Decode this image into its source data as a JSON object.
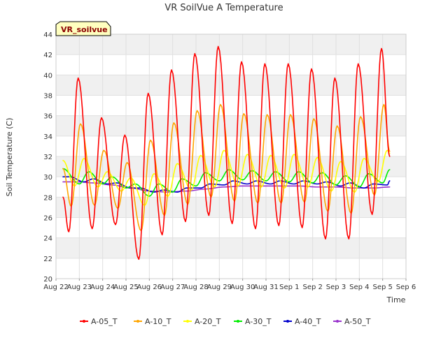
{
  "chart_data": {
    "type": "line",
    "title": "VR SoilVue A Temperature",
    "xlabel": "Time",
    "ylabel": "Soil Temperature (C)",
    "station_label": "VR_soilvue",
    "ylim": [
      20,
      44
    ],
    "y_ticks": [
      20,
      22,
      24,
      26,
      28,
      30,
      32,
      34,
      36,
      38,
      40,
      42,
      44
    ],
    "xlim": [
      0,
      15
    ],
    "x_ticks": [
      {
        "x": 0,
        "label": "Aug 22"
      },
      {
        "x": 1,
        "label": "Aug 23"
      },
      {
        "x": 2,
        "label": "Aug 24"
      },
      {
        "x": 3,
        "label": "Aug 25"
      },
      {
        "x": 4,
        "label": "Aug 26"
      },
      {
        "x": 5,
        "label": "Aug 27"
      },
      {
        "x": 6,
        "label": "Aug 28"
      },
      {
        "x": 7,
        "label": "Aug 29"
      },
      {
        "x": 8,
        "label": "Aug 30"
      },
      {
        "x": 9,
        "label": "Aug 31"
      },
      {
        "x": 10,
        "label": "Sep 1"
      },
      {
        "x": 11,
        "label": "Sep 2"
      },
      {
        "x": 12,
        "label": "Sep 3"
      },
      {
        "x": 13,
        "label": "Sep 4"
      },
      {
        "x": 14,
        "label": "Sep 5"
      },
      {
        "x": 15,
        "label": "Sep 6"
      }
    ],
    "grid": true,
    "legend_position": "bottom",
    "series": [
      {
        "name": "A-05_T",
        "color": "#ff0000",
        "points": [
          [
            0.3,
            28.0
          ],
          [
            0.55,
            24.6
          ],
          [
            0.95,
            39.7
          ],
          [
            1.55,
            24.9
          ],
          [
            1.95,
            35.8
          ],
          [
            2.55,
            25.3
          ],
          [
            2.95,
            34.1
          ],
          [
            3.55,
            21.9
          ],
          [
            3.95,
            38.2
          ],
          [
            4.55,
            24.3
          ],
          [
            4.95,
            40.5
          ],
          [
            5.55,
            25.6
          ],
          [
            5.95,
            42.1
          ],
          [
            6.55,
            26.2
          ],
          [
            6.95,
            42.8
          ],
          [
            7.55,
            25.4
          ],
          [
            7.95,
            41.3
          ],
          [
            8.55,
            24.9
          ],
          [
            8.95,
            41.1
          ],
          [
            9.55,
            25.2
          ],
          [
            9.95,
            41.1
          ],
          [
            10.55,
            25.0
          ],
          [
            10.95,
            40.6
          ],
          [
            11.55,
            23.9
          ],
          [
            11.95,
            39.7
          ],
          [
            12.55,
            23.9
          ],
          [
            12.95,
            41.1
          ],
          [
            13.55,
            26.3
          ],
          [
            13.95,
            42.6
          ],
          [
            14.3,
            32.0
          ]
        ]
      },
      {
        "name": "A-10_T",
        "color": "#ffa500",
        "points": [
          [
            0.3,
            30.8
          ],
          [
            0.65,
            27.1
          ],
          [
            1.05,
            35.2
          ],
          [
            1.65,
            27.2
          ],
          [
            2.05,
            32.6
          ],
          [
            2.65,
            26.9
          ],
          [
            3.05,
            31.4
          ],
          [
            3.65,
            24.7
          ],
          [
            4.05,
            33.6
          ],
          [
            4.65,
            26.2
          ],
          [
            5.05,
            35.3
          ],
          [
            5.65,
            27.3
          ],
          [
            6.05,
            36.5
          ],
          [
            6.65,
            28.0
          ],
          [
            7.05,
            37.1
          ],
          [
            7.65,
            27.6
          ],
          [
            8.05,
            36.2
          ],
          [
            8.65,
            27.4
          ],
          [
            9.05,
            36.1
          ],
          [
            9.65,
            27.4
          ],
          [
            10.05,
            36.1
          ],
          [
            10.65,
            27.5
          ],
          [
            11.05,
            35.7
          ],
          [
            11.65,
            26.6
          ],
          [
            12.05,
            35.0
          ],
          [
            12.65,
            26.4
          ],
          [
            13.05,
            35.9
          ],
          [
            13.65,
            28.2
          ],
          [
            14.05,
            37.1
          ],
          [
            14.3,
            32.5
          ]
        ]
      },
      {
        "name": "A-20_T",
        "color": "#ffff00",
        "points": [
          [
            0.3,
            31.6
          ],
          [
            0.8,
            29.1
          ],
          [
            1.2,
            31.8
          ],
          [
            1.8,
            29.0
          ],
          [
            2.2,
            30.5
          ],
          [
            2.8,
            28.6
          ],
          [
            3.2,
            29.9
          ],
          [
            3.8,
            27.2
          ],
          [
            4.2,
            30.3
          ],
          [
            4.8,
            28.1
          ],
          [
            5.2,
            31.3
          ],
          [
            5.8,
            28.7
          ],
          [
            6.2,
            32.1
          ],
          [
            6.8,
            29.0
          ],
          [
            7.2,
            32.6
          ],
          [
            7.8,
            29.1
          ],
          [
            8.2,
            32.2
          ],
          [
            8.8,
            29.0
          ],
          [
            9.2,
            32.1
          ],
          [
            9.8,
            28.9
          ],
          [
            10.2,
            32.2
          ],
          [
            10.8,
            29.0
          ],
          [
            11.2,
            31.9
          ],
          [
            11.8,
            28.6
          ],
          [
            12.2,
            31.5
          ],
          [
            12.8,
            28.5
          ],
          [
            13.2,
            31.8
          ],
          [
            13.8,
            29.5
          ],
          [
            14.2,
            32.6
          ],
          [
            14.3,
            32.3
          ]
        ]
      },
      {
        "name": "A-30_T",
        "color": "#00ee00",
        "points": [
          [
            0.3,
            30.8
          ],
          [
            1.0,
            29.3
          ],
          [
            1.4,
            30.5
          ],
          [
            2.0,
            29.3
          ],
          [
            2.4,
            30.0
          ],
          [
            3.0,
            28.9
          ],
          [
            3.4,
            29.3
          ],
          [
            4.0,
            28.1
          ],
          [
            4.4,
            29.3
          ],
          [
            5.0,
            28.5
          ],
          [
            5.4,
            29.8
          ],
          [
            6.0,
            29.1
          ],
          [
            6.4,
            30.4
          ],
          [
            7.0,
            29.6
          ],
          [
            7.4,
            30.7
          ],
          [
            8.0,
            29.7
          ],
          [
            8.4,
            30.6
          ],
          [
            9.0,
            29.6
          ],
          [
            9.4,
            30.5
          ],
          [
            10.0,
            29.5
          ],
          [
            10.4,
            30.5
          ],
          [
            11.0,
            29.4
          ],
          [
            11.4,
            30.4
          ],
          [
            12.0,
            29.2
          ],
          [
            12.4,
            30.1
          ],
          [
            13.0,
            29.0
          ],
          [
            13.4,
            30.3
          ],
          [
            14.0,
            29.4
          ],
          [
            14.3,
            30.7
          ]
        ]
      },
      {
        "name": "A-40_T",
        "color": "#0000cc",
        "points": [
          [
            0.3,
            30.0
          ],
          [
            0.6,
            30.0
          ],
          [
            1.2,
            29.5
          ],
          [
            1.6,
            29.8
          ],
          [
            2.2,
            29.3
          ],
          [
            2.6,
            29.4
          ],
          [
            3.2,
            28.9
          ],
          [
            3.6,
            28.9
          ],
          [
            4.2,
            28.5
          ],
          [
            4.6,
            28.7
          ],
          [
            5.2,
            28.5
          ],
          [
            5.6,
            28.9
          ],
          [
            6.2,
            28.9
          ],
          [
            6.6,
            29.3
          ],
          [
            7.2,
            29.2
          ],
          [
            7.6,
            29.6
          ],
          [
            8.2,
            29.3
          ],
          [
            8.6,
            29.6
          ],
          [
            9.2,
            29.3
          ],
          [
            9.6,
            29.6
          ],
          [
            10.2,
            29.3
          ],
          [
            10.6,
            29.6
          ],
          [
            11.2,
            29.3
          ],
          [
            11.6,
            29.5
          ],
          [
            12.2,
            29.1
          ],
          [
            12.6,
            29.4
          ],
          [
            13.2,
            28.9
          ],
          [
            13.6,
            29.3
          ],
          [
            14.2,
            29.2
          ],
          [
            14.3,
            29.6
          ]
        ]
      },
      {
        "name": "A-50_T",
        "color": "#9932cc",
        "points": [
          [
            0.3,
            29.5
          ],
          [
            1.0,
            29.5
          ],
          [
            1.6,
            29.4
          ],
          [
            2.4,
            29.2
          ],
          [
            3.2,
            28.9
          ],
          [
            4.0,
            28.6
          ],
          [
            4.8,
            28.5
          ],
          [
            5.6,
            28.6
          ],
          [
            6.4,
            28.8
          ],
          [
            7.2,
            29.0
          ],
          [
            8.0,
            29.1
          ],
          [
            8.8,
            29.1
          ],
          [
            9.6,
            29.1
          ],
          [
            10.4,
            29.1
          ],
          [
            11.2,
            29.0
          ],
          [
            12.0,
            29.0
          ],
          [
            12.8,
            28.9
          ],
          [
            13.6,
            28.9
          ],
          [
            14.3,
            29.0
          ]
        ]
      }
    ]
  }
}
